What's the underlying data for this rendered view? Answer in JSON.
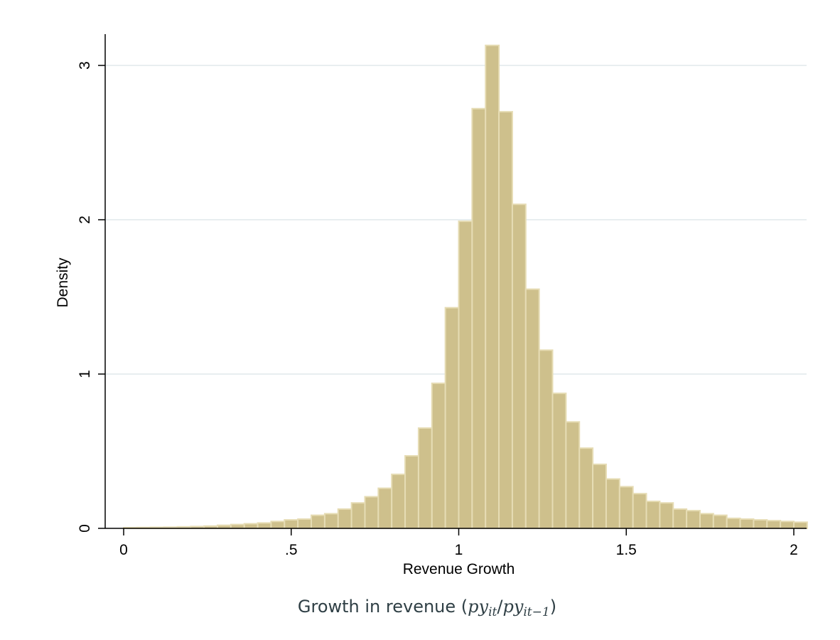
{
  "chart_data": {
    "type": "bar",
    "title": "",
    "xlabel": "Revenue Growth",
    "ylabel": "Density",
    "caption": {
      "prefix": "Growth in revenue (",
      "num_base": "py",
      "num_sub": "it",
      "slash": "/",
      "den_base": "py",
      "den_sub": "it−1",
      "suffix": ")"
    },
    "xlim": [
      -0.05,
      2.04
    ],
    "ylim": [
      0,
      3.2
    ],
    "grid": true,
    "bin_width": 0.04,
    "bin_start": 0.0,
    "xticks": [
      {
        "value": 0,
        "label": "0"
      },
      {
        "value": 0.5,
        "label": ".5"
      },
      {
        "value": 1,
        "label": "1"
      },
      {
        "value": 1.5,
        "label": "1.5"
      },
      {
        "value": 2,
        "label": "2"
      }
    ],
    "yticks": [
      {
        "value": 0,
        "label": "0"
      },
      {
        "value": 1,
        "label": "1"
      },
      {
        "value": 2,
        "label": "2"
      },
      {
        "value": 3,
        "label": "3"
      }
    ],
    "values": [
      0.005,
      0.006,
      0.007,
      0.008,
      0.01,
      0.012,
      0.015,
      0.02,
      0.025,
      0.03,
      0.035,
      0.045,
      0.055,
      0.06,
      0.085,
      0.095,
      0.125,
      0.165,
      0.205,
      0.26,
      0.35,
      0.47,
      0.65,
      0.94,
      1.43,
      1.99,
      2.72,
      3.13,
      2.7,
      2.1,
      1.55,
      1.155,
      0.875,
      0.69,
      0.52,
      0.415,
      0.32,
      0.27,
      0.225,
      0.175,
      0.165,
      0.125,
      0.115,
      0.095,
      0.085,
      0.065,
      0.06,
      0.055,
      0.05,
      0.045,
      0.04
    ],
    "colors": {
      "bar_fill": "#cec08c",
      "bar_edge": "#e6dcb4",
      "grid": "#e8eef0",
      "axis": "#000000"
    }
  }
}
